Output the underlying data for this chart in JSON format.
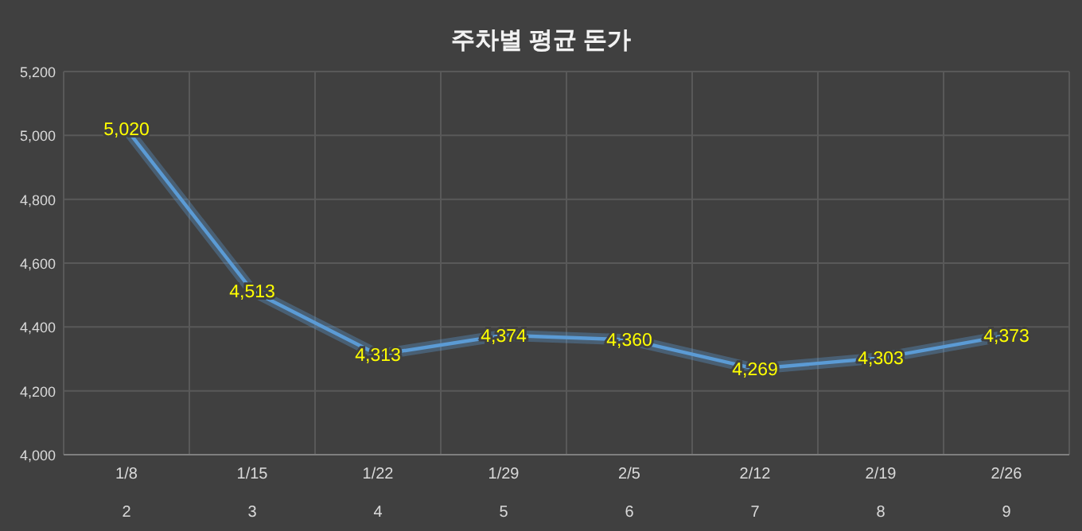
{
  "chart_data": {
    "type": "line",
    "title": "주차별 평균 돈가",
    "categories": [
      "1/8\n2",
      "1/15\n3",
      "1/22\n4",
      "1/29\n5",
      "2/5\n6",
      "2/12\n7",
      "2/19\n8",
      "2/26\n9"
    ],
    "series": [
      {
        "color": "#5b9bd5",
        "values": [
          5020,
          4513,
          4313,
          4374,
          4360,
          4269,
          4303,
          4373
        ],
        "value_labels": [
          "5,020",
          "4,513",
          "4,313",
          "4,374",
          "4,360",
          "4,269",
          "4,303",
          "4,373"
        ]
      }
    ],
    "ylim": [
      4000,
      5200
    ],
    "yticks": [
      {
        "value": 4000,
        "label": "4,000"
      },
      {
        "value": 4200,
        "label": "4,200"
      },
      {
        "value": 4400,
        "label": "4,400"
      },
      {
        "value": 4600,
        "label": "4,600"
      },
      {
        "value": 4800,
        "label": "4,800"
      },
      {
        "value": 5000,
        "label": "5,000"
      },
      {
        "value": 5200,
        "label": "5,200"
      }
    ],
    "grid": true,
    "marker": "none",
    "line_style": "solid"
  }
}
